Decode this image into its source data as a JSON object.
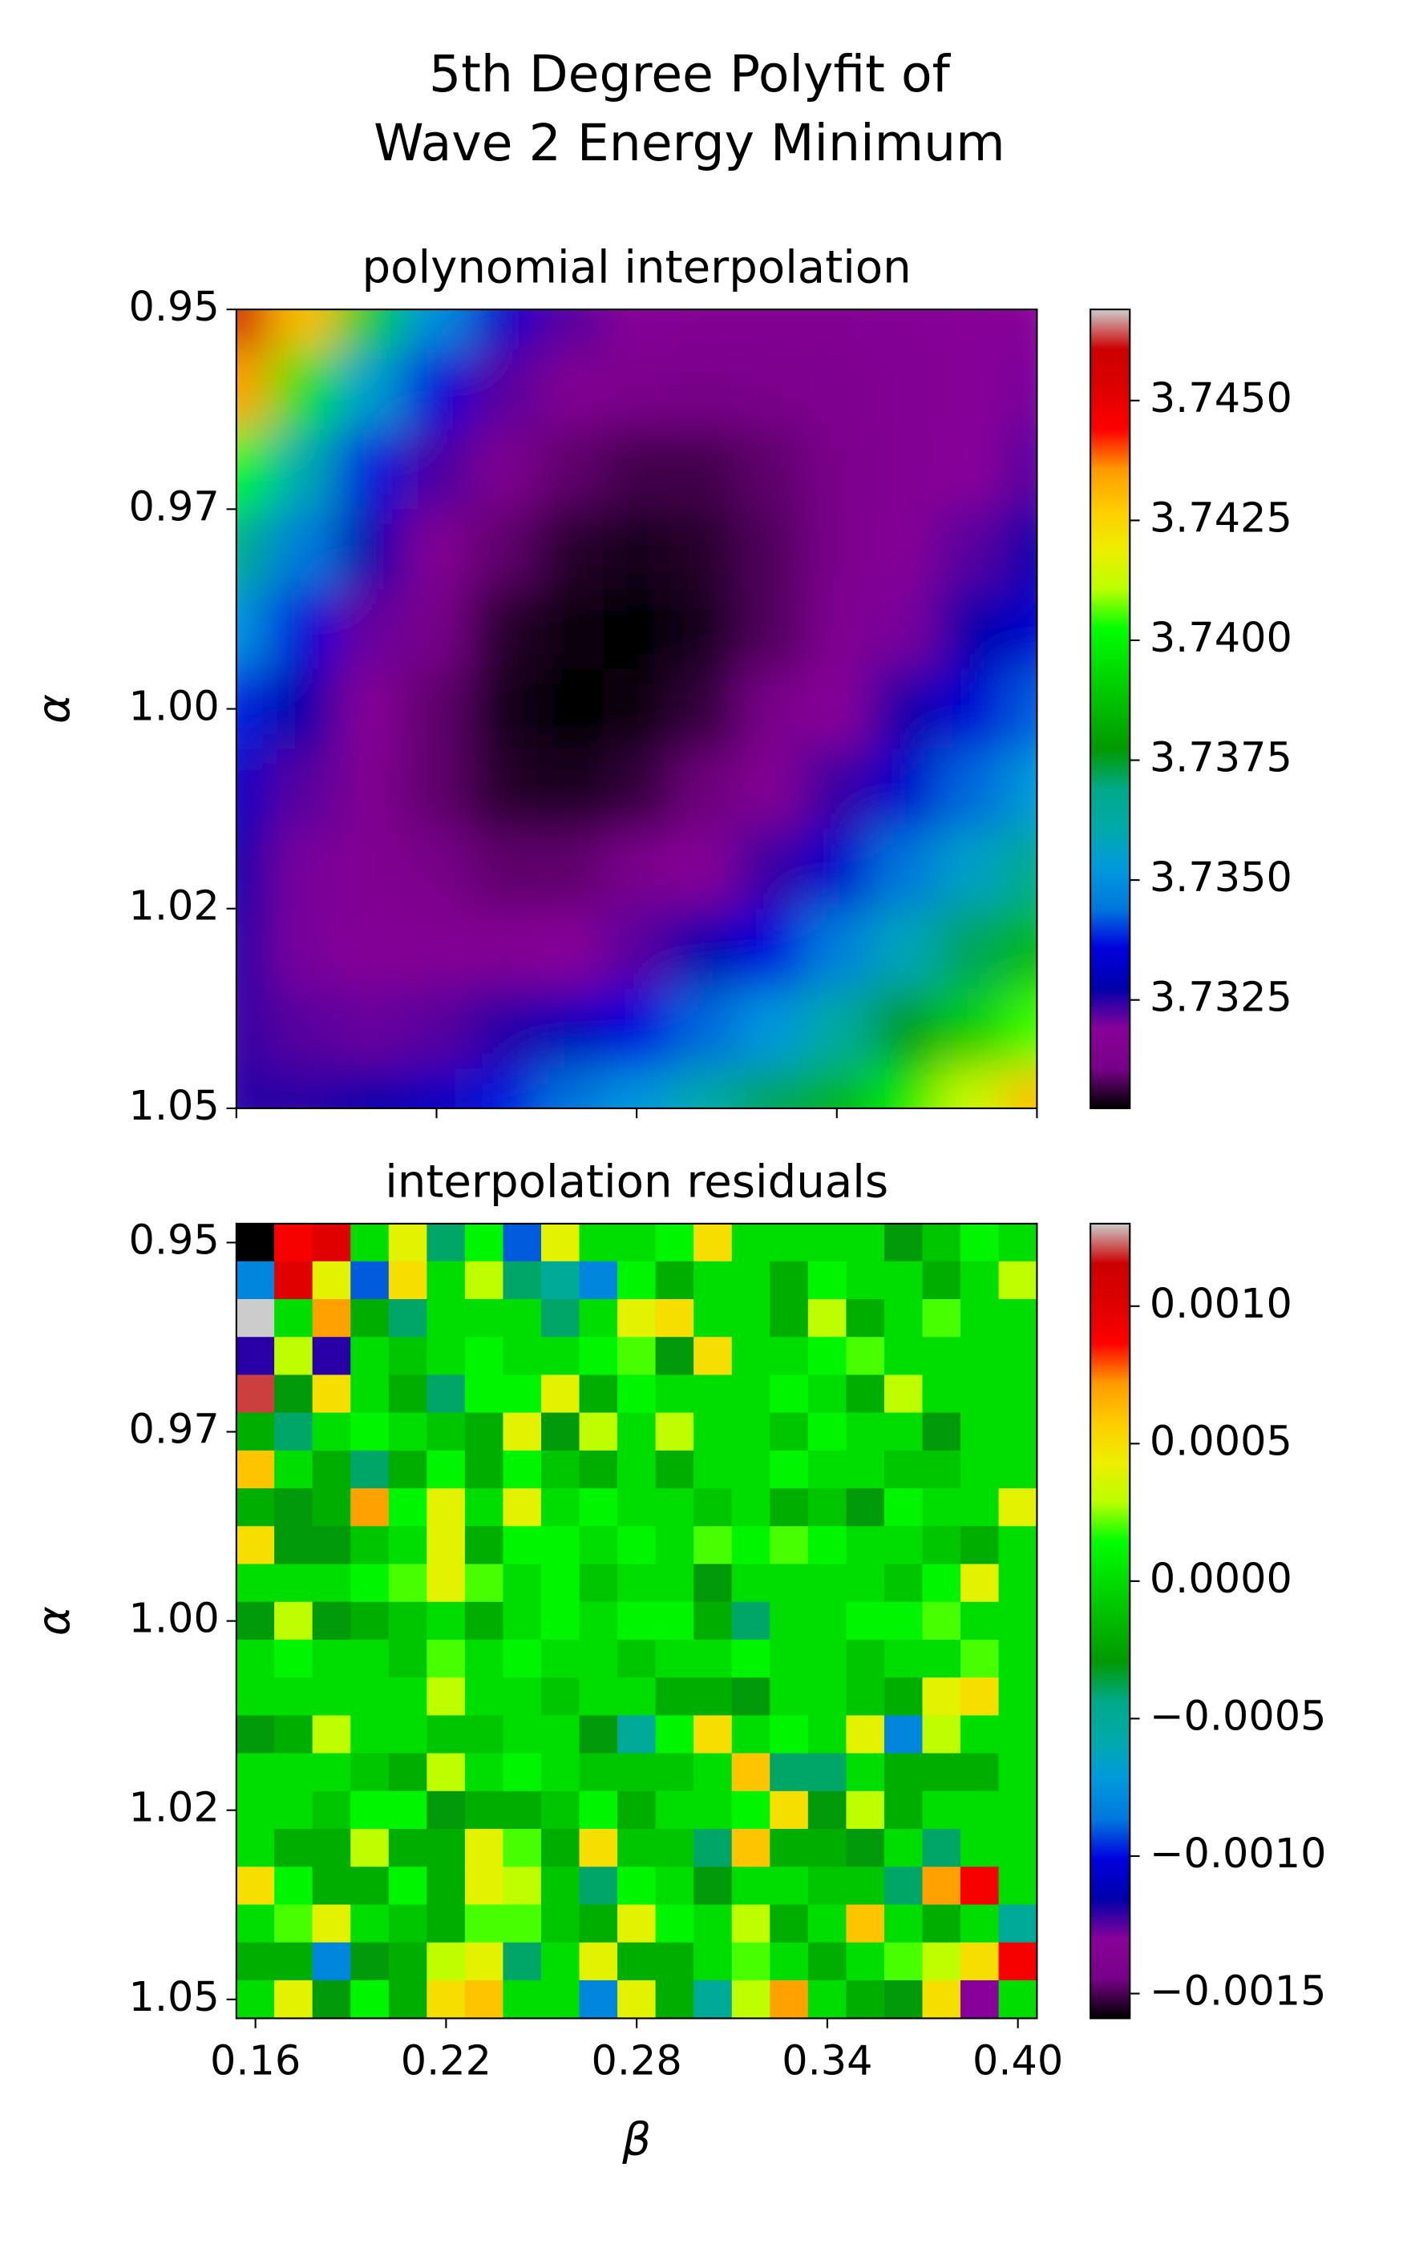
{
  "title": {
    "lines": [
      "5th Degree Polyfit of",
      "Wave 2 Energy Minimum"
    ]
  },
  "chart_data": [
    {
      "type": "heatmap",
      "title": "polynomial interpolation",
      "ylabel": "α",
      "colormap": "nipy_spectral",
      "smooth": true,
      "x": [
        0.16,
        0.18,
        0.2,
        0.22,
        0.24,
        0.26,
        0.28,
        0.3,
        0.32,
        0.34,
        0.36,
        0.38,
        0.4
      ],
      "y": [
        0.95,
        0.96,
        0.97,
        0.98,
        0.99,
        1.0,
        1.01,
        1.02,
        1.03,
        1.04,
        1.05
      ],
      "z": [
        [
          3.746,
          3.743,
          3.739,
          3.735,
          3.7333,
          3.7322,
          3.7318,
          3.7316,
          3.7316,
          3.7316,
          3.7317,
          3.7318,
          3.7319
        ],
        [
          3.7435,
          3.7395,
          3.7355,
          3.7335,
          3.7322,
          3.7315,
          3.7312,
          3.7311,
          3.7312,
          3.7314,
          3.7316,
          3.7318,
          3.732
        ],
        [
          3.74,
          3.736,
          3.7337,
          3.7323,
          3.7314,
          3.7309,
          3.7307,
          3.7307,
          3.7309,
          3.7312,
          3.7316,
          3.7319,
          3.7322
        ],
        [
          3.7368,
          3.7345,
          3.7328,
          3.7316,
          3.7309,
          3.7305,
          3.7304,
          3.7305,
          3.7308,
          3.7312,
          3.7317,
          3.7322,
          3.7327
        ],
        [
          3.735,
          3.7335,
          3.7321,
          3.7311,
          3.7305,
          3.7303,
          3.7302,
          3.7304,
          3.7308,
          3.7314,
          3.732,
          3.7327,
          3.7333
        ],
        [
          3.7338,
          3.7327,
          3.7317,
          3.7309,
          3.7304,
          3.7302,
          3.7303,
          3.7306,
          3.7311,
          3.7318,
          3.7326,
          3.7334,
          3.7342
        ],
        [
          3.7331,
          3.7322,
          3.7315,
          3.7309,
          3.7305,
          3.7304,
          3.7306,
          3.731,
          3.7316,
          3.7324,
          3.7333,
          3.7343,
          3.7353
        ],
        [
          3.7327,
          3.732,
          3.7315,
          3.7311,
          3.7309,
          3.7309,
          3.7312,
          3.7317,
          3.7324,
          3.7333,
          3.7344,
          3.7356,
          3.7368
        ],
        [
          3.7325,
          3.732,
          3.7317,
          3.7316,
          3.7316,
          3.7318,
          3.7322,
          3.7328,
          3.7336,
          3.7346,
          3.7358,
          3.7372,
          3.7385
        ],
        [
          3.7324,
          3.7322,
          3.7321,
          3.7322,
          3.7325,
          3.733,
          3.7336,
          3.7343,
          3.7352,
          3.7363,
          3.7376,
          3.739,
          3.7405
        ],
        [
          3.7325,
          3.7325,
          3.7327,
          3.7331,
          3.7337,
          3.7344,
          3.7352,
          3.7361,
          3.7372,
          3.7384,
          3.7398,
          3.7413,
          3.743
        ]
      ],
      "xlim": [
        0.16,
        0.4
      ],
      "ylim": [
        0.95,
        1.05
      ],
      "y_inverted": true,
      "xticks": [
        0.16,
        0.22,
        0.28,
        0.34,
        0.4
      ],
      "xtick_labels": false,
      "yticks": [
        0.95,
        {
          "value": 0.975,
          "label": "0.97"
        },
        {
          "value": 1.0,
          "label": "1.00"
        },
        {
          "value": 1.025,
          "label": "1.02"
        },
        1.05
      ],
      "clim": [
        3.73024,
        3.7469
      ],
      "cticks": [
        3.7325,
        {
          "value": 3.735,
          "label": "3.7350"
        },
        3.7375,
        {
          "value": 3.74,
          "label": "3.7400"
        },
        3.7425,
        {
          "value": 3.745,
          "label": "3.7450"
        }
      ]
    },
    {
      "type": "heatmap",
      "title": "interpolation residuals",
      "ylabel": "α",
      "xlabel": "β",
      "colormap": "nipy_spectral",
      "smooth": false,
      "x": [
        0.16,
        0.172,
        0.184,
        0.196,
        0.208,
        0.22,
        0.232,
        0.244,
        0.256,
        0.268,
        0.28,
        0.292,
        0.304,
        0.316,
        0.328,
        0.34,
        0.352,
        0.364,
        0.376,
        0.388,
        0.4
      ],
      "y": [
        0.95,
        0.955,
        0.96,
        0.965,
        0.97,
        0.975,
        0.98,
        0.985,
        0.99,
        0.995,
        1.0,
        1.005,
        1.01,
        1.015,
        1.02,
        1.025,
        1.03,
        1.035,
        1.04,
        1.045,
        1.05
      ],
      "z": [
        [
          -0.0016,
          0.0009,
          0.001,
          0,
          0.0004,
          -0.0004,
          0.0001,
          -0.0009,
          0.0004,
          0,
          0,
          0.0001,
          0.0005,
          0,
          0,
          0,
          0,
          -0.0003,
          -0.0001,
          0.0001,
          0
        ],
        [
          -0.0008,
          0.001,
          0.0004,
          -0.0009,
          0.0005,
          0,
          0.0003,
          -0.0004,
          -0.0005,
          -0.0008,
          0.0001,
          -0.0002,
          0,
          0,
          -0.0002,
          0.0001,
          0,
          0,
          -0.0002,
          0,
          0.0003
        ],
        [
          0.0013,
          0,
          0.0007,
          -0.0002,
          -0.0004,
          0,
          0,
          0,
          -0.0004,
          0,
          0.0004,
          0.0005,
          0,
          0,
          -0.0002,
          0.0003,
          -0.0002,
          0,
          0.0002,
          0,
          0
        ],
        [
          -0.0012,
          0.0003,
          -0.0012,
          0,
          -0.0001,
          0,
          0.0001,
          0,
          0,
          0.0001,
          0.0002,
          -0.0003,
          0.0005,
          0,
          0,
          0.0001,
          0.0002,
          0,
          0,
          0,
          0
        ],
        [
          0.0012,
          -0.0003,
          0.0005,
          0,
          -0.0002,
          -0.0004,
          0.0001,
          0.0001,
          0.0004,
          -0.0002,
          0.0001,
          0,
          0,
          0,
          0.0001,
          0,
          -0.0002,
          0.0003,
          0,
          0,
          0
        ],
        [
          -0.0002,
          -0.0004,
          0,
          0.0001,
          0,
          -0.0001,
          -0.0002,
          0.0004,
          -0.0003,
          0.0003,
          0,
          0.0003,
          0,
          0,
          -0.0001,
          0.0001,
          0,
          0,
          -0.0003,
          0,
          0
        ],
        [
          0.0006,
          0,
          -0.0002,
          -0.0004,
          -0.0002,
          0.0001,
          -0.0002,
          0.0001,
          -0.0001,
          -0.0002,
          0,
          -0.0002,
          0,
          0,
          0.0001,
          0,
          0,
          -0.0001,
          -0.0001,
          0,
          0
        ],
        [
          -0.0002,
          -0.0003,
          -0.0002,
          0.0007,
          0.0001,
          0.0004,
          0,
          0.0004,
          0,
          0.0001,
          0,
          0,
          -0.0001,
          0,
          -0.0002,
          -0.0001,
          -0.0003,
          0.0001,
          0,
          0,
          0.0004
        ],
        [
          0.0005,
          -0.0003,
          -0.0003,
          -0.0001,
          0,
          0.0004,
          -0.0002,
          0.0001,
          0.0001,
          0,
          0.0001,
          0,
          0.0002,
          0.0001,
          0.0002,
          0.0001,
          0,
          0,
          -0.0001,
          -0.0002,
          0
        ],
        [
          0,
          0,
          0,
          0.0001,
          0.0002,
          0.0004,
          0.0002,
          0,
          0.0001,
          -0.0001,
          0,
          0,
          -0.0003,
          0,
          0,
          0,
          0,
          -0.0001,
          0.0001,
          0.0004,
          0
        ],
        [
          -0.0003,
          0.0003,
          -0.0003,
          -0.0002,
          -0.0001,
          0,
          -0.0002,
          0,
          0.0001,
          0,
          0.0001,
          0.0001,
          -0.0002,
          -0.0004,
          0,
          0,
          0.0001,
          0.0001,
          0.0002,
          0,
          0
        ],
        [
          0,
          0.0001,
          0,
          0,
          -0.0001,
          0.0002,
          0,
          0.0001,
          0,
          0,
          -0.0001,
          0,
          0,
          0.0001,
          0,
          0,
          -0.0001,
          0,
          0,
          0.0002,
          0
        ],
        [
          0,
          0,
          0,
          0,
          0,
          0.0003,
          0,
          0,
          -0.0001,
          0,
          0,
          -0.0002,
          -0.0002,
          -0.0003,
          0,
          0,
          -0.0001,
          -0.0002,
          0.0004,
          0.0005,
          0
        ],
        [
          -0.0003,
          -0.0002,
          0.0003,
          0,
          0,
          -0.0001,
          -0.0001,
          0,
          0,
          -0.0003,
          -0.0005,
          0.0001,
          0.0005,
          0,
          0.0001,
          0,
          0.0004,
          -0.0008,
          0.0003,
          0,
          0
        ],
        [
          0,
          0,
          0,
          -0.0001,
          -0.0002,
          0.0003,
          0,
          0.0001,
          0,
          -0.0001,
          -0.0001,
          -0.0001,
          0,
          0.0006,
          -0.0004,
          -0.0004,
          0,
          -0.0002,
          -0.0002,
          -0.0002,
          0
        ],
        [
          0,
          0,
          -0.0001,
          0.0001,
          0.0001,
          -0.0003,
          -0.0002,
          -0.0002,
          -0.0001,
          0.0001,
          -0.0002,
          0,
          0,
          0.0001,
          0.0005,
          -0.0003,
          0.0003,
          -0.0002,
          0,
          0,
          0
        ],
        [
          0,
          -0.0002,
          -0.0002,
          0.0003,
          -0.0002,
          -0.0002,
          0.0004,
          0.0002,
          -0.0002,
          0.0005,
          -0.0001,
          -0.0001,
          -0.0004,
          0.0006,
          -0.0002,
          -0.0002,
          -0.0003,
          0,
          -0.0004,
          0,
          0
        ],
        [
          0.0005,
          0.0001,
          -0.0002,
          -0.0002,
          0.0001,
          -0.0002,
          0.0004,
          0.0003,
          -0.0001,
          -0.0004,
          0.0001,
          0,
          -0.0003,
          0,
          0,
          -0.0001,
          -0.0001,
          -0.0004,
          0.0007,
          0.0009,
          0
        ],
        [
          0,
          0.0002,
          0.0004,
          0,
          -0.0001,
          -0.0002,
          0.0002,
          0.0002,
          -0.0001,
          -0.0002,
          0.0004,
          0.0001,
          0,
          0.0003,
          -0.0002,
          0,
          0.0006,
          0,
          -0.0002,
          0,
          -0.0005
        ],
        [
          -0.0002,
          -0.0002,
          -0.0008,
          -0.0003,
          -0.0002,
          0.0003,
          0.0004,
          -0.0004,
          0,
          0.0004,
          -0.0002,
          -0.0002,
          0,
          0.0002,
          0,
          -0.0002,
          0,
          0.0002,
          0.0003,
          0.0005,
          0.0009
        ],
        [
          0,
          0.0004,
          -0.0003,
          0.0001,
          -0.0002,
          0.0005,
          0.0006,
          0,
          0,
          -0.0008,
          0.0004,
          -0.0002,
          -0.0005,
          0.0003,
          0.0007,
          0,
          -0.0002,
          -0.0003,
          0.0005,
          -0.0013,
          0
        ]
      ],
      "xlim": [
        0.154,
        0.406
      ],
      "ylim": [
        0.9475,
        1.0525
      ],
      "y_inverted": true,
      "xticks": [
        0.16,
        0.22,
        0.28,
        0.34,
        {
          "value": 0.4,
          "label": "0.40"
        }
      ],
      "yticks": [
        0.95,
        {
          "value": 0.975,
          "label": "0.97"
        },
        {
          "value": 1.0,
          "label": "1.00"
        },
        {
          "value": 1.025,
          "label": "1.02"
        },
        1.05
      ],
      "clim": [
        -0.00159,
        0.0013
      ],
      "cticks": [
        {
          "value": -0.0015,
          "label": "−0.0015"
        },
        {
          "value": -0.001,
          "label": "−0.0010"
        },
        {
          "value": -0.0005,
          "label": "−0.0005"
        },
        {
          "value": 0,
          "label": "0.0000"
        },
        {
          "value": 0.0005,
          "label": "0.0005"
        },
        {
          "value": 0.001,
          "label": "0.0010"
        }
      ]
    }
  ]
}
